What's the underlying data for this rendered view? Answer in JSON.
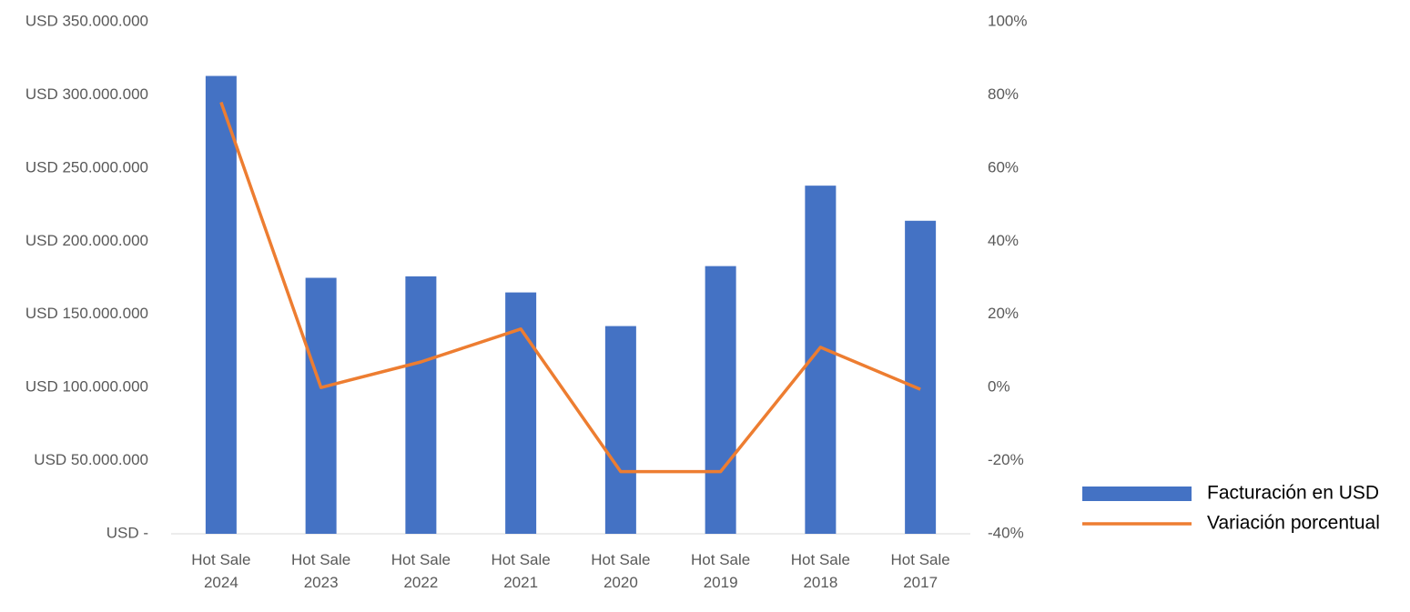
{
  "chart_data": {
    "type": "bar-line",
    "categories": [
      "Hot Sale 2024",
      "Hot Sale 2023",
      "Hot Sale 2022",
      "Hot Sale 2021",
      "Hot Sale 2020",
      "Hot Sale 2019",
      "Hot Sale 2018",
      "Hot Sale 2017"
    ],
    "series": [
      {
        "name": "Facturación en USD",
        "type": "bar",
        "color": "#4472c4",
        "values": [
          313000000,
          175000000,
          176000000,
          165000000,
          142000000,
          183000000,
          238000000,
          214000000
        ]
      },
      {
        "name": "Variación porcentual",
        "type": "line",
        "axis": "y2",
        "color": "#ed7d31",
        "values": [
          78,
          0,
          7,
          16,
          -23,
          -23,
          11,
          -0.5
        ]
      }
    ],
    "ylim": [
      0,
      350000000
    ],
    "yticks": [
      {
        "value": 0,
        "label": "USD -"
      },
      {
        "value": 50000000,
        "label": "USD 50.000.000"
      },
      {
        "value": 100000000,
        "label": "USD 100.000.000"
      },
      {
        "value": 150000000,
        "label": "USD 150.000.000"
      },
      {
        "value": 200000000,
        "label": "USD 200.000.000"
      },
      {
        "value": 250000000,
        "label": "USD 250.000.000"
      },
      {
        "value": 300000000,
        "label": "USD 300.000.000"
      },
      {
        "value": 350000000,
        "label": "USD 350.000.000"
      }
    ],
    "y2lim": [
      -40,
      100
    ],
    "y2ticks": [
      {
        "value": -40,
        "label": "-40%"
      },
      {
        "value": -20,
        "label": "-20%"
      },
      {
        "value": 0,
        "label": "0%"
      },
      {
        "value": 20,
        "label": "20%"
      },
      {
        "value": 40,
        "label": "40%"
      },
      {
        "value": 60,
        "label": "60%"
      },
      {
        "value": 80,
        "label": "80%"
      },
      {
        "value": 100,
        "label": "100%"
      }
    ],
    "grid": false,
    "legend": "right"
  }
}
